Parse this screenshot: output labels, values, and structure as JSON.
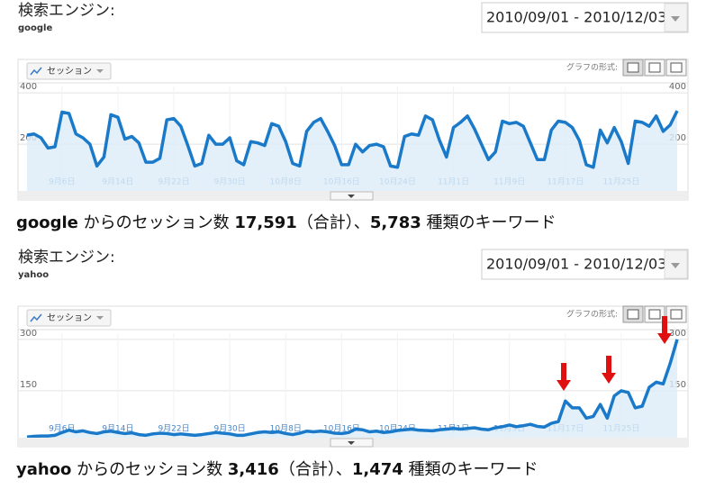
{
  "panels": [
    {
      "heading": "検索エンジン:",
      "source": "google",
      "date_range": "2010/09/01 - 2010/12/03",
      "graph_format": "グラフの形式:",
      "summary": {
        "source": "google",
        "text1": " からのセッション数 ",
        "sessions": "17,591",
        "text2": "（合計）、",
        "keywords": "5,783",
        "text3": " 種類のキーワード"
      }
    },
    {
      "heading": "検索エンジン:",
      "source": "yahoo",
      "date_range": "2010/09/01 - 2010/12/03",
      "graph_format": "グラフの形式:",
      "summary": {
        "source": "yahoo",
        "text1": " からのセッション数 ",
        "sessions": "3,416",
        "text2": "（合計）、",
        "keywords": "1,474",
        "text3": " 種類のキーワード"
      }
    }
  ],
  "chart_data": [
    {
      "type": "line",
      "ylim": [
        18,
        425
      ],
      "yticks": [
        200,
        400
      ],
      "grid": true,
      "categories": [
        null,
        null,
        null,
        null,
        null,
        "9月6日",
        null,
        null,
        null,
        null,
        null,
        null,
        null,
        "9月14日",
        null,
        null,
        null,
        null,
        null,
        null,
        null,
        "9月22日",
        null,
        null,
        null,
        null,
        null,
        null,
        null,
        "9月30日",
        null,
        null,
        null,
        null,
        null,
        null,
        null,
        "10月8日",
        null,
        null,
        null,
        null,
        null,
        null,
        null,
        "10月16日",
        null,
        null,
        null,
        null,
        null,
        null,
        null,
        "10月24日",
        null,
        null,
        null,
        null,
        null,
        null,
        null,
        "11月1日",
        null,
        null,
        null,
        null,
        null,
        null,
        null,
        "11月9日",
        null,
        null,
        null,
        null,
        null,
        null,
        null,
        "11月17日",
        null,
        null,
        null,
        null,
        null,
        null,
        null,
        "11月25日",
        null,
        null,
        null,
        null,
        null,
        null,
        null,
        null
      ],
      "series": [
        {
          "name": "セッション",
          "color": "#1a7ac9",
          "values": [
            235,
            240,
            225,
            185,
            190,
            325,
            320,
            240,
            225,
            200,
            115,
            150,
            315,
            305,
            220,
            230,
            205,
            130,
            130,
            145,
            295,
            300,
            270,
            195,
            115,
            125,
            235,
            200,
            200,
            225,
            135,
            120,
            210,
            205,
            195,
            280,
            270,
            210,
            125,
            115,
            250,
            285,
            300,
            250,
            195,
            120,
            120,
            200,
            170,
            195,
            200,
            190,
            115,
            110,
            230,
            240,
            235,
            310,
            295,
            215,
            150,
            265,
            285,
            310,
            260,
            200,
            140,
            170,
            290,
            280,
            285,
            270,
            205,
            140,
            140,
            255,
            290,
            285,
            265,
            215,
            120,
            110,
            255,
            205,
            265,
            210,
            125,
            290,
            285,
            270,
            310,
            250,
            275,
            330
          ]
        }
      ]
    },
    {
      "type": "line",
      "ylim": [
        13,
        318
      ],
      "yticks": [
        150,
        300
      ],
      "grid": true,
      "categories": [
        null,
        null,
        null,
        null,
        null,
        "9月6日",
        null,
        null,
        null,
        null,
        null,
        null,
        null,
        "9月14日",
        null,
        null,
        null,
        null,
        null,
        null,
        null,
        "9月22日",
        null,
        null,
        null,
        null,
        null,
        null,
        null,
        "9月30日",
        null,
        null,
        null,
        null,
        null,
        null,
        null,
        "10月8日",
        null,
        null,
        null,
        null,
        null,
        null,
        null,
        "10月16日",
        null,
        null,
        null,
        null,
        null,
        null,
        null,
        "10月24日",
        null,
        null,
        null,
        null,
        null,
        null,
        null,
        "11月1日",
        null,
        null,
        null,
        null,
        null,
        null,
        null,
        "11月9日",
        null,
        null,
        null,
        null,
        null,
        null,
        null,
        "11月17日",
        null,
        null,
        null,
        null,
        null,
        null,
        null,
        "11月25日",
        null,
        null,
        null,
        null,
        null,
        null,
        null,
        null
      ],
      "series": [
        {
          "name": "セッション",
          "color": "#1a7ac9",
          "values": [
            15,
            17,
            18,
            18,
            20,
            28,
            35,
            30,
            33,
            28,
            25,
            30,
            32,
            28,
            25,
            27,
            22,
            20,
            24,
            26,
            25,
            22,
            24,
            22,
            20,
            22,
            25,
            28,
            26,
            24,
            20,
            20,
            24,
            28,
            30,
            28,
            30,
            25,
            22,
            26,
            32,
            30,
            32,
            30,
            26,
            25,
            28,
            38,
            36,
            30,
            32,
            28,
            30,
            34,
            36,
            38,
            35,
            34,
            33,
            36,
            38,
            40,
            38,
            40,
            42,
            38,
            36,
            42,
            45,
            50,
            45,
            48,
            52,
            46,
            44,
            55,
            60,
            120,
            100,
            100,
            70,
            75,
            110,
            70,
            135,
            150,
            145,
            100,
            105,
            160,
            175,
            170,
            230,
            300
          ]
        }
      ]
    }
  ]
}
